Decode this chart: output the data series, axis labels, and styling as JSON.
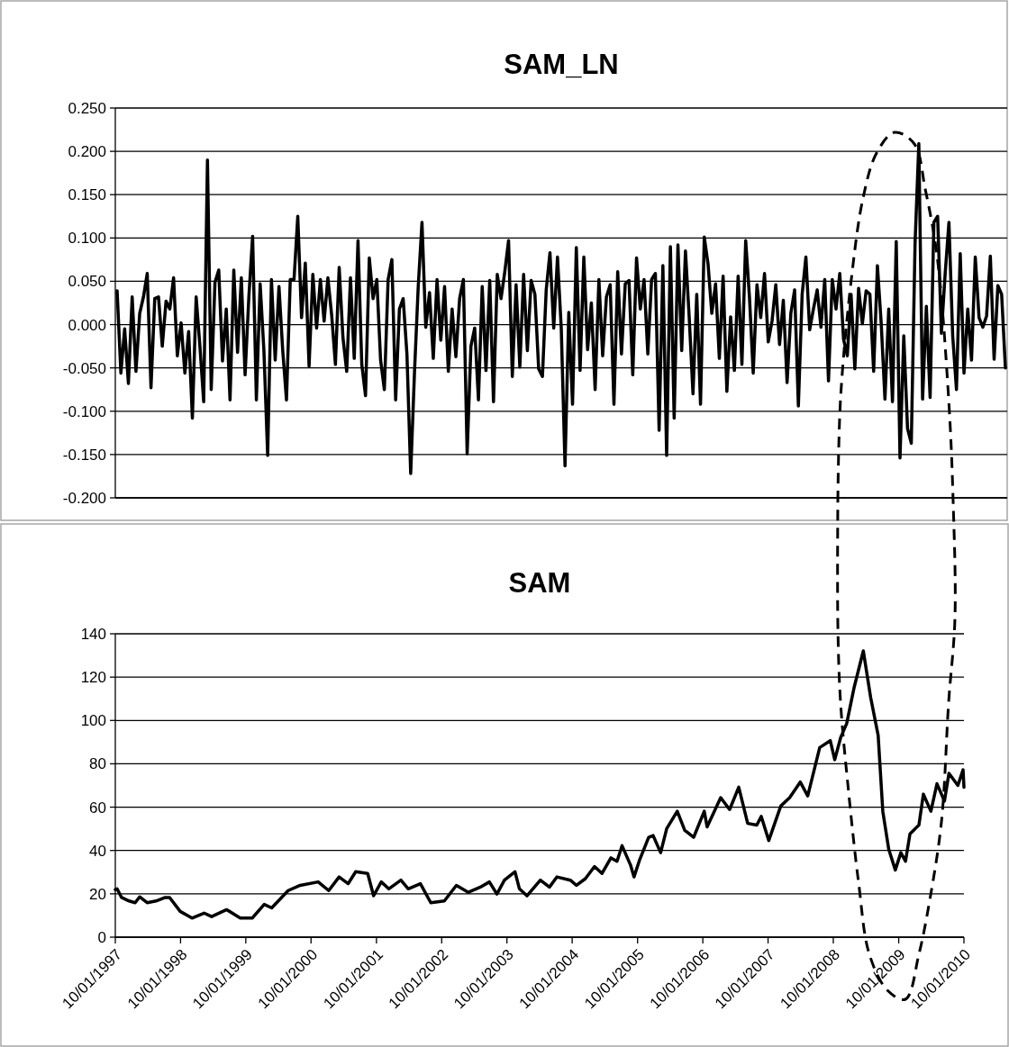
{
  "chart_data": [
    {
      "type": "line",
      "title": "SAM_LN",
      "tick_labels": "y",
      "grid": "y",
      "line_style": "solid",
      "color": "#000000",
      "ylim": [
        -0.2,
        0.25
      ],
      "yticks": [
        {
          "value": -0.2,
          "label": "-0.200"
        },
        {
          "value": -0.15,
          "label": "-0.150"
        },
        {
          "value": -0.1,
          "label": "-0.100"
        },
        {
          "value": -0.05,
          "label": "-0.050"
        },
        {
          "value": 0,
          "label": "0.000"
        },
        {
          "value": 0.05,
          "label": "0.050"
        },
        {
          "value": 0.1,
          "label": "0.100"
        },
        {
          "value": 0.15,
          "label": "0.150"
        },
        {
          "value": 0.2,
          "label": "0.200"
        },
        {
          "value": 0.25,
          "label": "0.250"
        }
      ],
      "values": [
        0.039,
        -0.056,
        -0.005,
        -0.068,
        0.032,
        -0.054,
        0.013,
        0.032,
        0.059,
        -0.073,
        0.03,
        0.032,
        -0.025,
        0.027,
        0.018,
        0.054,
        -0.036,
        0.002,
        -0.056,
        -0.008,
        -0.108,
        0.032,
        -0.025,
        -0.089,
        0.19,
        -0.075,
        0.049,
        0.063,
        -0.042,
        0.018,
        -0.087,
        0.063,
        -0.032,
        0.054,
        -0.058,
        0.032,
        0.102,
        -0.087,
        0.047,
        -0.03,
        -0.151,
        0.052,
        -0.041,
        0.044,
        -0.03,
        -0.087,
        0.052,
        0.052,
        0.125,
        0.008,
        0.071,
        -0.048,
        0.058,
        -0.004,
        0.052,
        0.004,
        0.054,
        0.011,
        -0.046,
        0.066,
        -0.015,
        -0.054,
        0.054,
        -0.039,
        0.097,
        -0.046,
        -0.082,
        0.077,
        0.03,
        0.052,
        -0.041,
        -0.075,
        0.052,
        0.075,
        -0.087,
        0.018,
        0.03,
        -0.034,
        -0.172,
        -0.056,
        0.044,
        0.118,
        -0.003,
        0.037,
        -0.039,
        0.052,
        -0.018,
        0.044,
        -0.054,
        0.018,
        -0.037,
        0.03,
        0.052,
        -0.149,
        -0.025,
        -0.004,
        -0.087,
        0.044,
        -0.053,
        0.051,
        -0.089,
        0.058,
        0.03,
        0.061,
        0.097,
        -0.06,
        0.046,
        -0.049,
        0.058,
        -0.03,
        0.051,
        0.035,
        -0.051,
        -0.06,
        0.04,
        0.083,
        -0.004,
        0.078,
        -0.004,
        -0.163,
        0.014,
        -0.092,
        0.089,
        -0.053,
        0.078,
        -0.029,
        0.025,
        -0.075,
        0.052,
        -0.036,
        0.032,
        0.046,
        -0.092,
        0.061,
        -0.034,
        0.047,
        0.051,
        -0.058,
        0.077,
        0.018,
        0.052,
        -0.034,
        0.052,
        0.059,
        -0.122,
        0.068,
        -0.151,
        0.09,
        -0.108,
        0.092,
        -0.03,
        0.085,
        0.008,
        -0.08,
        0.035,
        -0.092,
        0.101,
        0.07,
        0.013,
        0.047,
        -0.039,
        0.056,
        -0.077,
        0.009,
        -0.053,
        0.056,
        -0.046,
        0.097,
        0.032,
        -0.056,
        0.046,
        0.008,
        0.059,
        -0.02,
        0.004,
        0.046,
        -0.023,
        0.028,
        -0.067,
        0.013,
        0.04,
        -0.094,
        0.035,
        0.078,
        -0.006,
        0.018,
        0.04,
        -0.003,
        0.052,
        -0.065,
        0.052,
        0.018,
        0.059,
        -0.017,
        -0.036,
        0.035,
        -0.051,
        0.042,
        0.001,
        0.039,
        0.035,
        -0.054,
        0.068,
        0.002,
        -0.086,
        0.018,
        -0.089,
        0.096,
        -0.154,
        -0.013,
        -0.12,
        -0.137,
        0.094,
        0.209,
        -0.086,
        0.021,
        -0.084,
        0.118,
        0.125,
        -0.01,
        0.059,
        0.118,
        -0.013,
        -0.075,
        0.082,
        -0.056,
        0.018,
        -0.041,
        0.078,
        0.008,
        -0.003,
        0.01,
        0.079,
        -0.04,
        0.045,
        0.035,
        -0.05
      ],
      "categories": [
        null,
        null,
        null,
        null,
        null,
        null,
        null,
        null,
        null,
        null,
        null,
        null,
        null,
        null,
        null,
        null,
        null,
        null,
        null,
        null,
        null,
        null,
        null,
        null,
        null,
        null,
        null,
        null,
        null,
        null,
        null,
        null,
        null,
        null,
        null,
        null,
        null,
        null,
        null,
        null,
        null,
        null,
        null,
        null,
        null,
        null,
        null,
        null,
        null,
        null,
        null,
        null,
        null,
        null,
        null,
        null,
        null,
        null,
        null,
        null,
        null,
        null,
        null,
        null,
        null,
        null,
        null,
        null,
        null,
        null,
        null,
        null,
        null,
        null,
        null,
        null,
        null,
        null,
        null,
        null,
        null,
        null,
        null,
        null,
        null,
        null,
        null,
        null,
        null,
        null,
        null,
        null,
        null,
        null,
        null,
        null,
        null,
        null,
        null,
        null,
        null,
        null,
        null,
        null,
        null,
        null,
        null,
        null,
        null,
        null,
        null,
        null,
        null,
        null,
        null,
        null,
        null,
        null,
        null,
        null,
        null,
        null,
        null,
        null,
        null,
        null,
        null,
        null,
        null,
        null,
        null,
        null,
        null,
        null,
        null,
        null,
        null,
        null,
        null,
        null,
        null,
        null,
        null,
        null,
        null,
        null,
        null,
        null,
        null,
        null,
        null,
        null,
        null,
        null,
        null,
        null,
        null,
        null,
        null,
        null,
        null,
        null,
        null,
        null,
        null,
        null,
        null,
        null,
        null,
        null,
        null,
        null,
        null,
        null,
        null,
        null,
        null,
        null,
        null,
        null,
        null,
        null,
        null,
        null,
        null,
        null,
        null,
        null,
        null,
        null,
        null,
        null,
        null,
        null,
        null,
        null,
        null,
        null,
        null,
        null,
        null,
        null,
        null,
        null,
        null,
        null,
        null,
        null,
        null,
        null,
        null,
        null,
        null,
        null,
        null,
        null,
        null,
        null,
        null,
        null,
        null,
        null,
        null,
        null,
        null,
        null,
        null,
        null,
        null,
        null,
        null,
        null,
        null,
        null,
        null,
        null,
        null
      ]
    },
    {
      "type": "line",
      "title": "SAM",
      "grid": "y",
      "line_style": "solid",
      "color": "#000000",
      "xlim": [
        "1997-01-10",
        "2010-01-10"
      ],
      "xticks": [
        {
          "value": "1997-01-10",
          "label": "10/01/1997"
        },
        {
          "value": "1998-01-10",
          "label": "10/01/1998"
        },
        {
          "value": "1999-01-10",
          "label": "10/01/1999"
        },
        {
          "value": "2000-01-10",
          "label": "10/01/2000"
        },
        {
          "value": "2001-01-10",
          "label": "10/01/2001"
        },
        {
          "value": "2002-01-10",
          "label": "10/01/2002"
        },
        {
          "value": "2003-01-10",
          "label": "10/01/2003"
        },
        {
          "value": "2004-01-10",
          "label": "10/01/2004"
        },
        {
          "value": "2005-01-10",
          "label": "10/01/2005"
        },
        {
          "value": "2006-01-10",
          "label": "10/01/2006"
        },
        {
          "value": "2007-01-10",
          "label": "10/01/2007"
        },
        {
          "value": "2008-01-10",
          "label": "10/01/2008"
        },
        {
          "value": "2009-01-10",
          "label": "10/01/2009"
        },
        {
          "value": "2010-01-10",
          "label": "10/01/2010"
        }
      ],
      "ylim": [
        0,
        140
      ],
      "yticks": [
        0,
        20,
        40,
        60,
        80,
        100,
        120,
        140
      ],
      "x": [
        "1997-01-10",
        "1997-01-20",
        "1997-02-14",
        "1997-03-28",
        "1997-05-01",
        "1997-05-26",
        "1997-07-07",
        "1997-08-26",
        "1997-10-16",
        "1997-11-10",
        "1998-01-08",
        "1998-03-15",
        "1998-05-22",
        "1998-07-03",
        "1998-09-25",
        "1998-12-10",
        "1999-02-15",
        "1999-04-23",
        "1999-06-04",
        "1999-09-04",
        "1999-11-10",
        "2000-02-19",
        "2000-04-18",
        "2000-06-15",
        "2000-08-05",
        "2000-09-16",
        "2000-11-22",
        "2000-12-25",
        "2001-02-06",
        "2001-03-20",
        "2001-05-27",
        "2001-07-07",
        "2001-09-13",
        "2001-11-10",
        "2002-01-25",
        "2002-04-02",
        "2002-06-08",
        "2002-08-14",
        "2002-10-04",
        "2002-11-15",
        "2002-12-27",
        "2003-02-24",
        "2003-03-21",
        "2003-05-02",
        "2003-07-16",
        "2003-09-05",
        "2003-10-17",
        "2003-12-31",
        "2004-02-03",
        "2004-03-24",
        "2004-05-14",
        "2004-06-25",
        "2004-08-14",
        "2004-09-17",
        "2004-10-15",
        "2004-12-01",
        "2004-12-21",
        "2005-01-22",
        "2005-03-13",
        "2005-04-07",
        "2005-05-19",
        "2005-06-22",
        "2005-08-20",
        "2005-10-01",
        "2005-11-20",
        "2006-01-18",
        "2006-02-03",
        "2006-04-20",
        "2006-06-09",
        "2006-07-30",
        "2006-09-18",
        "2006-11-08",
        "2006-12-03",
        "2007-01-14",
        "2007-03-22",
        "2007-05-11",
        "2007-07-09",
        "2007-08-20",
        "2007-10-26",
        "2007-12-24",
        "2008-01-18",
        "2008-02-21",
        "2008-03-25",
        "2008-05-06",
        "2008-06-26",
        "2008-08-06",
        "2008-09-17",
        "2008-10-13",
        "2008-11-15",
        "2008-12-22",
        "2009-01-22",
        "2009-02-17",
        "2009-03-14",
        "2009-05-03",
        "2009-05-28",
        "2009-07-09",
        "2009-08-12",
        "2009-09-23",
        "2009-10-18",
        "2009-12-07",
        "2010-01-05",
        "2010-01-10"
      ],
      "values": [
        22,
        22.3,
        18.3,
        16.7,
        15.9,
        18.6,
        15.9,
        16.7,
        18.3,
        18.3,
        11.9,
        8.8,
        11.1,
        9.5,
        12.7,
        8.8,
        8.8,
        15.1,
        13.5,
        21.5,
        23.9,
        25.5,
        21.5,
        27.8,
        24.7,
        30.2,
        29.4,
        19.1,
        25.5,
        22.3,
        26.3,
        22.3,
        24.7,
        15.9,
        16.7,
        23.9,
        20.7,
        23.1,
        25.5,
        19.9,
        26.3,
        30.2,
        22.3,
        19.1,
        26.3,
        23.1,
        27.8,
        26.3,
        23.9,
        27,
        32.6,
        29.4,
        36.6,
        35,
        42.2,
        33.4,
        27.8,
        35.8,
        46.1,
        46.9,
        39,
        50.1,
        58.1,
        49.3,
        46.1,
        58.1,
        50.9,
        64.4,
        58.9,
        69.2,
        52.5,
        51.7,
        55.7,
        44.6,
        60.5,
        64.4,
        71.6,
        65.2,
        87.5,
        90.7,
        81.9,
        92.3,
        98.6,
        115.4,
        132.1,
        110.6,
        93.1,
        58.1,
        40.6,
        31,
        39,
        35,
        47.7,
        51.7,
        66,
        58.1,
        70.8,
        62.8,
        75.6,
        70,
        77.2,
        69.2
      ]
    }
  ]
}
